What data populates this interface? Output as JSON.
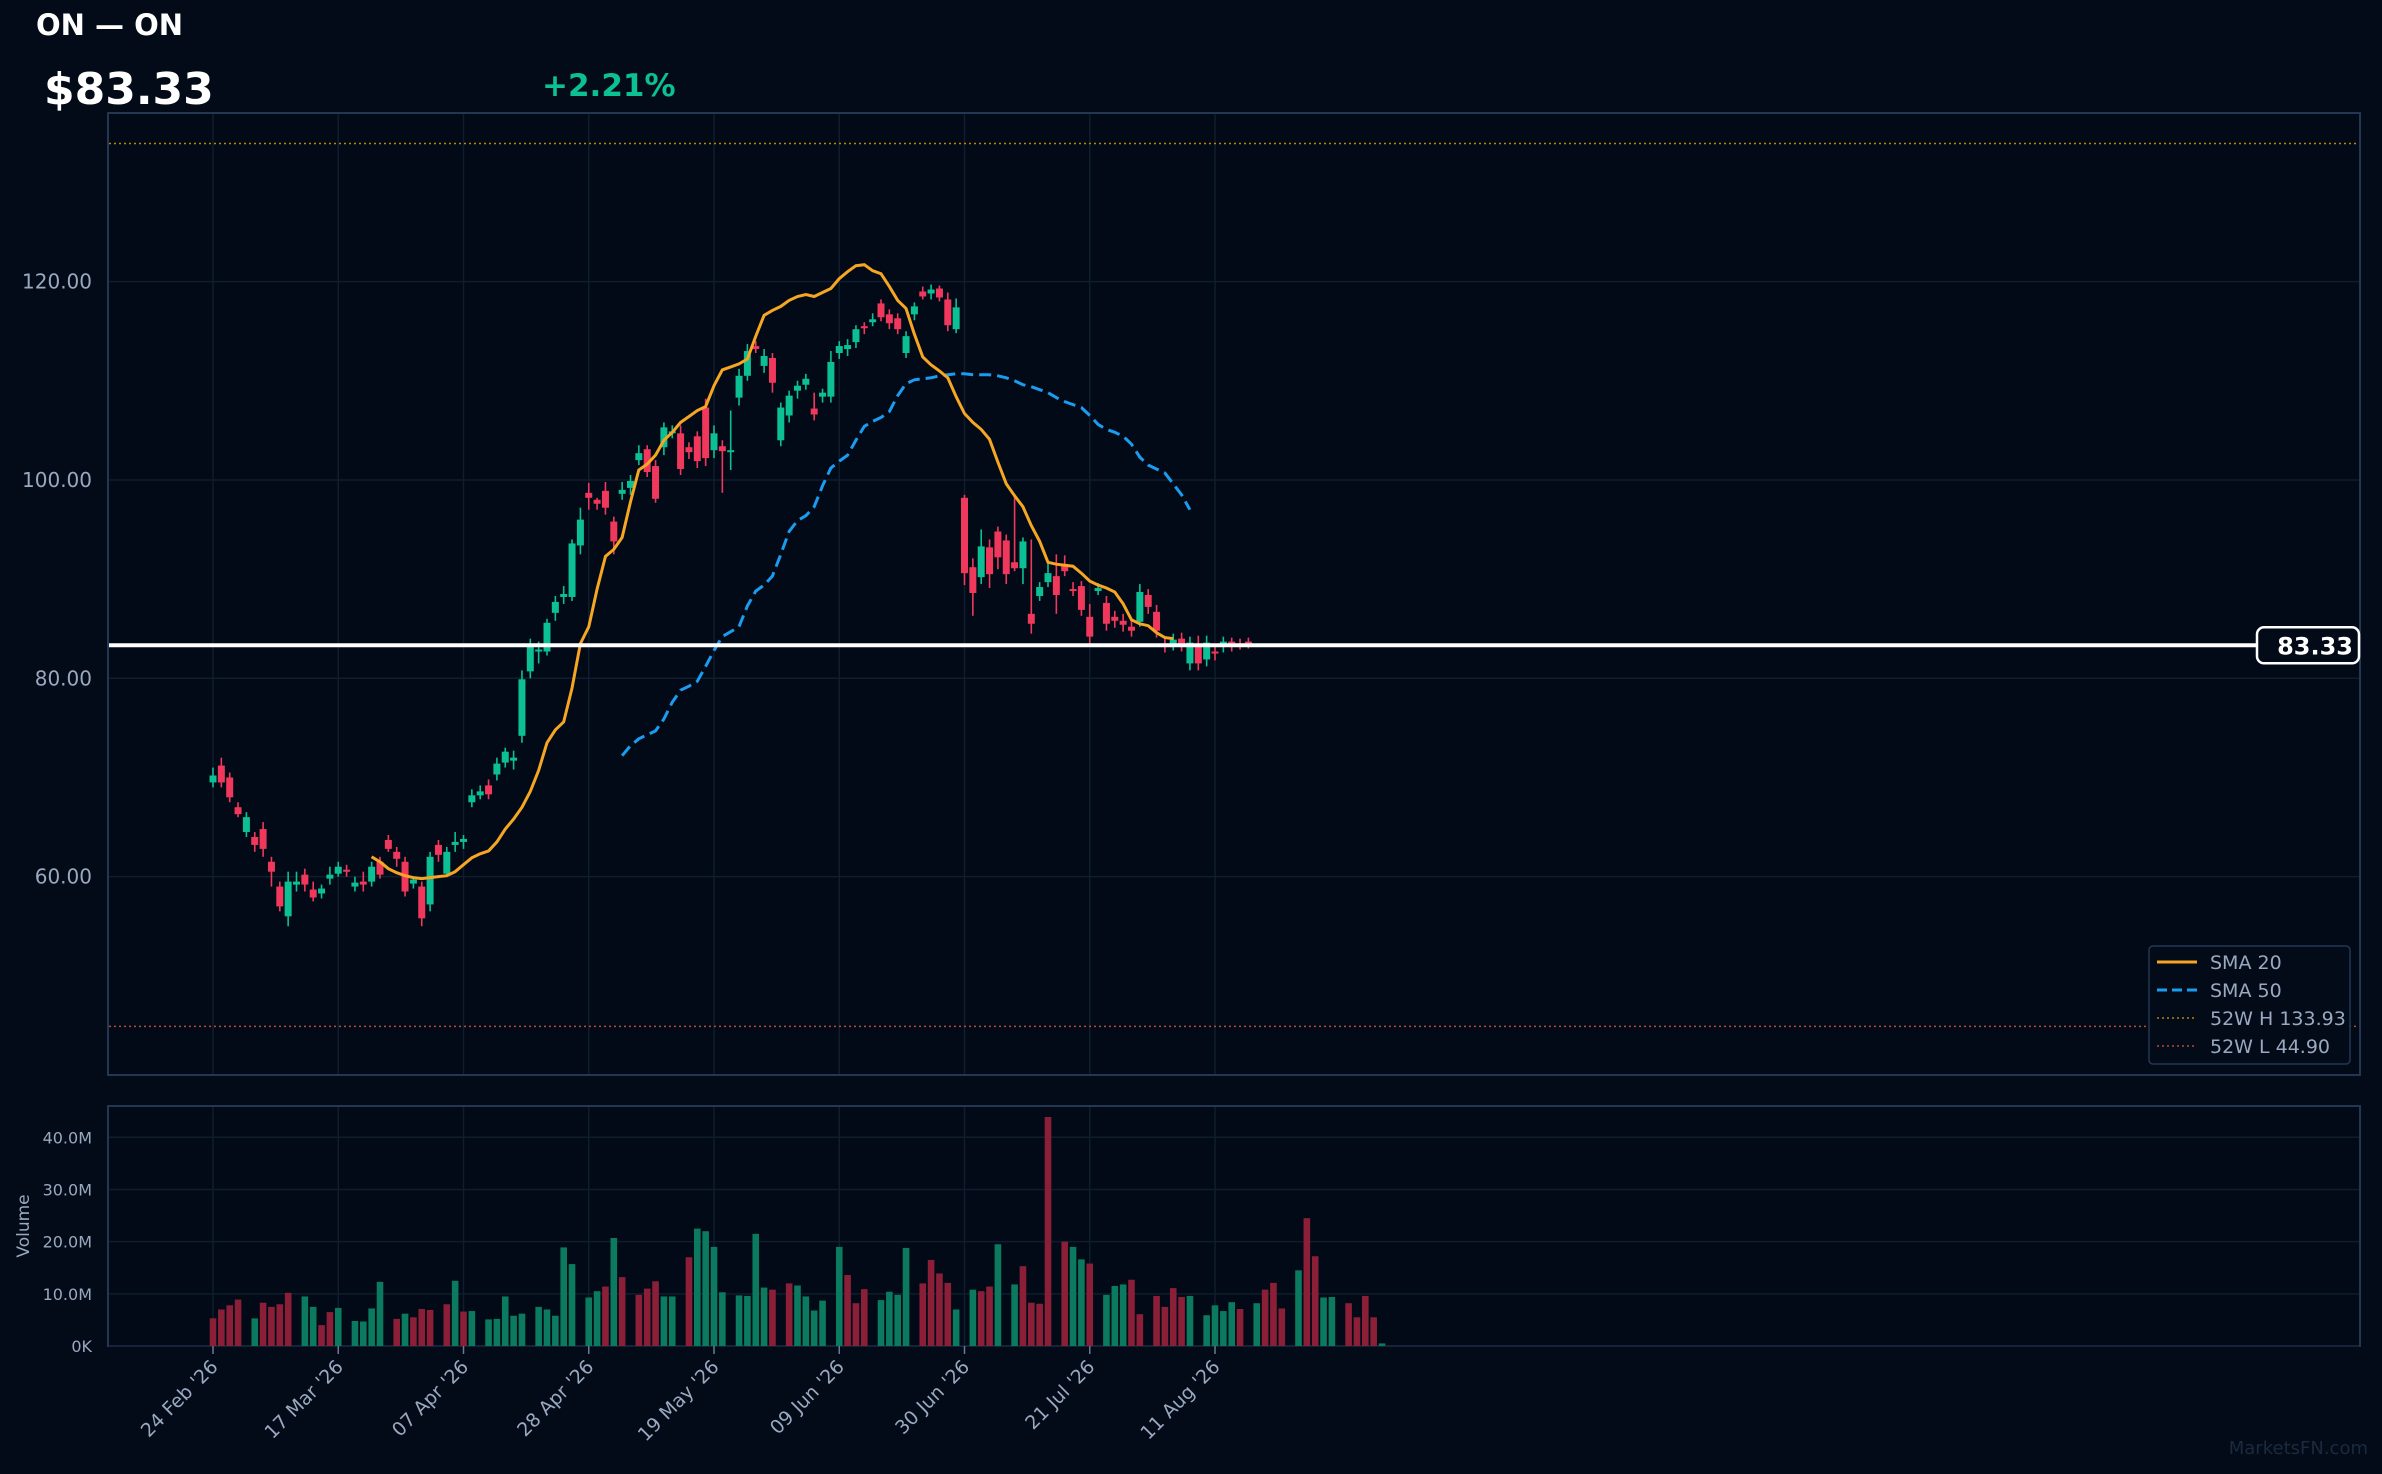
{
  "header": {
    "title": "ON — ON",
    "price": "$83.33",
    "change": "+2.21%"
  },
  "colors": {
    "up": "#0dbf94",
    "down": "#f0385c",
    "up_volume": "#0b7a5e",
    "down_volume": "#8c1f38",
    "sma20": "#f6a623",
    "sma50": "#1a9cf0",
    "high_line": "#b8860b",
    "low_line": "#b84a3a",
    "background": "#020b17",
    "axis_text": "#9aa8c0"
  },
  "watermark": "MarketsFN.com",
  "chart_data": [
    {
      "type": "candlestick",
      "price_axis": {
        "ylim": [
          40,
          137
        ],
        "ticks": [
          "60.00",
          "80.00",
          "100.00",
          "120.00"
        ],
        "grid": true
      },
      "x_ticks": [
        {
          "label": "24 Feb '26",
          "index": 0
        },
        {
          "label": "17 Mar '26",
          "index": 15
        },
        {
          "label": "07 Apr '26",
          "index": 30
        },
        {
          "label": "28 Apr '26",
          "index": 45
        },
        {
          "label": "19 May '26",
          "index": 60
        },
        {
          "label": "09 Jun '26",
          "index": 75
        },
        {
          "label": "30 Jun '26",
          "index": 90
        },
        {
          "label": "21 Jul '26",
          "index": 105
        },
        {
          "label": "11 Aug '26",
          "index": 120
        }
      ],
      "current_price_label": "83.33",
      "current_price": 83.33,
      "candles": [
        [
          69.5,
          70.2,
          71,
          69
        ],
        [
          71.2,
          69.5,
          72,
          69
        ],
        [
          70,
          68,
          70.5,
          67.5
        ],
        [
          67,
          66.3,
          67.5,
          66
        ],
        [
          64.5,
          66,
          66.5,
          64
        ],
        [
          64,
          63.2,
          64.5,
          62.5
        ],
        [
          64.8,
          62.8,
          65.5,
          62
        ],
        [
          61.5,
          60.5,
          62,
          59
        ],
        [
          59,
          57,
          59.5,
          56.5
        ],
        [
          56,
          59.5,
          60.5,
          55
        ],
        [
          59.2,
          59.5,
          60.5,
          58.5
        ],
        [
          60.2,
          59.2,
          60.8,
          58.5
        ],
        [
          58.7,
          57.9,
          59.5,
          57.5
        ],
        [
          58.3,
          58.8,
          59.2,
          57.8
        ],
        [
          59.8,
          60.2,
          61,
          59.2
        ],
        [
          60.3,
          61,
          61.5,
          60
        ],
        [
          60.7,
          60.5,
          61.2,
          60
        ],
        [
          59,
          59.4,
          60,
          58.5
        ],
        [
          59.5,
          59.2,
          60.5,
          58.5
        ],
        [
          59.5,
          61,
          61.5,
          59
        ],
        [
          61.5,
          60.2,
          62,
          59.8
        ],
        [
          63.7,
          62.8,
          64.2,
          62.5
        ],
        [
          62.5,
          61.8,
          63,
          61
        ],
        [
          61.5,
          58.5,
          62,
          58
        ],
        [
          59.3,
          59.7,
          60,
          58.8
        ],
        [
          59,
          55.8,
          59.5,
          55
        ],
        [
          57.2,
          62,
          62.5,
          56.5
        ],
        [
          63.2,
          62.2,
          63.7,
          61.5
        ],
        [
          60.3,
          62.5,
          63,
          60
        ],
        [
          63.2,
          63.5,
          64.5,
          62.5
        ],
        [
          63.5,
          63.8,
          64.2,
          62.8
        ],
        [
          67.5,
          68.2,
          68.8,
          67
        ],
        [
          68.2,
          68.6,
          69.2,
          67.8
        ],
        [
          69.2,
          68.3,
          69.8,
          67.8
        ],
        [
          70.3,
          71.4,
          72,
          69.7
        ],
        [
          71.5,
          72.6,
          73,
          71
        ],
        [
          71.7,
          72,
          72.7,
          70.8
        ],
        [
          74.2,
          79.9,
          80.8,
          73.5
        ],
        [
          80.7,
          83.5,
          84,
          80
        ],
        [
          82.7,
          82.9,
          83.7,
          81.5
        ],
        [
          82.7,
          85.6,
          86,
          82.3
        ],
        [
          86.6,
          87.7,
          88.3,
          85.8
        ],
        [
          88.2,
          88.5,
          89.3,
          87.5
        ],
        [
          88.2,
          93.6,
          94,
          87.8
        ],
        [
          93.4,
          96,
          97.2,
          92.5
        ],
        [
          98.7,
          98.2,
          99.7,
          97
        ],
        [
          98,
          97.6,
          98.2,
          97
        ],
        [
          98.9,
          97.2,
          99.8,
          96.5
        ],
        [
          95.8,
          93.8,
          96.3,
          92.5
        ],
        [
          98.6,
          99,
          99.8,
          98
        ],
        [
          99.2,
          99.9,
          100.5,
          98.5
        ],
        [
          102,
          102.7,
          103.5,
          101.5
        ],
        [
          103.1,
          100.8,
          103.5,
          100.3
        ],
        [
          101.4,
          98.1,
          102,
          97.7
        ],
        [
          103.3,
          105.3,
          105.8,
          102.5
        ],
        [
          104.8,
          104.9,
          105.5,
          104.2
        ],
        [
          104.7,
          101.1,
          105.5,
          100.5
        ],
        [
          103.3,
          102.8,
          103.8,
          102.1
        ],
        [
          104.4,
          101.9,
          104.9,
          101.2
        ],
        [
          107.3,
          102.2,
          108.2,
          101.4
        ],
        [
          103,
          104.7,
          105.5,
          102.2
        ],
        [
          103.4,
          102.9,
          104,
          98.7
        ],
        [
          103,
          103,
          107,
          101
        ],
        [
          108.3,
          110.5,
          111.2,
          107.5
        ],
        [
          110.5,
          113,
          113.7,
          110
        ],
        [
          113.5,
          113.2,
          114,
          112.8
        ],
        [
          111.5,
          112.5,
          113.2,
          110.8
        ],
        [
          112.3,
          109.8,
          112.8,
          108.8
        ],
        [
          104,
          107.3,
          107.8,
          103.4
        ],
        [
          106.5,
          108.5,
          109,
          105.8
        ],
        [
          109,
          109.5,
          110,
          108.2
        ],
        [
          109.6,
          110.2,
          110.7,
          109.1
        ],
        [
          107.2,
          106.6,
          108.8,
          106
        ],
        [
          108.4,
          108.8,
          109.2,
          107.8
        ],
        [
          108.4,
          111.9,
          113,
          107.8
        ],
        [
          112.8,
          113.5,
          114,
          112.2
        ],
        [
          113.2,
          113.6,
          114.2,
          112.5
        ],
        [
          113.9,
          115.2,
          115.6,
          113.3
        ],
        [
          115.5,
          115.3,
          115.9,
          114.7
        ],
        [
          115.9,
          116.2,
          116.8,
          115.5
        ],
        [
          117.8,
          116.4,
          118.2,
          116
        ],
        [
          116.7,
          115.8,
          117.2,
          115.2
        ],
        [
          116.3,
          115.2,
          116.8,
          114.7
        ],
        [
          112.8,
          114.5,
          115,
          112.3
        ],
        [
          116.7,
          117.5,
          117.9,
          116.1
        ],
        [
          119,
          118.5,
          119.5,
          118.2
        ],
        [
          118.8,
          119.2,
          119.7,
          118.2
        ],
        [
          119.3,
          118.4,
          119.6,
          118
        ],
        [
          118.2,
          115.6,
          118.9,
          115
        ],
        [
          115.2,
          117.4,
          118.3,
          114.8
        ],
        [
          98.2,
          90.6,
          98.5,
          89.4
        ],
        [
          91.2,
          88.6,
          92.1,
          86.3
        ],
        [
          90.2,
          93.3,
          95,
          89.5
        ],
        [
          93.2,
          90.5,
          94,
          89.1
        ],
        [
          94.8,
          92.2,
          95.3,
          91
        ],
        [
          93.9,
          90.5,
          94.5,
          89.5
        ],
        [
          91.7,
          91.1,
          98.6,
          90.8
        ],
        [
          91.1,
          93.8,
          94.2,
          89.5
        ],
        [
          86.5,
          85.5,
          94,
          84.5
        ],
        [
          88.3,
          89.2,
          89.7,
          87.8
        ],
        [
          89.7,
          90.6,
          91.7,
          89.2
        ],
        [
          90.3,
          88.4,
          92.5,
          86.5
        ],
        [
          91.3,
          90.8,
          92.4,
          90.3
        ],
        [
          89,
          88.8,
          89.7,
          88.3
        ],
        [
          89.3,
          86.9,
          89.8,
          86.3
        ],
        [
          86.2,
          84.2,
          87.5,
          83.5
        ],
        [
          88.8,
          89.1,
          89.6,
          88.4
        ],
        [
          87.6,
          85.5,
          88.3,
          84.8
        ],
        [
          86.2,
          85.8,
          86.8,
          85.1
        ],
        [
          85.8,
          85.4,
          86.5,
          84.7
        ],
        [
          85.2,
          84.8,
          86,
          84.2
        ],
        [
          85.7,
          88.7,
          89.5,
          85.2
        ],
        [
          88.4,
          87.2,
          89,
          86.5
        ],
        [
          86.7,
          84.8,
          87.4,
          84.1
        ],
        [
          83.5,
          83.2,
          84.2,
          82.6
        ],
        [
          83.4,
          83.9,
          84.5,
          82.8
        ],
        [
          84,
          83.5,
          84.6,
          82.7
        ],
        [
          81.5,
          83.6,
          84.2,
          80.8
        ],
        [
          83.5,
          81.5,
          84.3,
          80.8
        ],
        [
          81.9,
          83.6,
          84.3,
          81.2
        ],
        [
          82.7,
          82.5,
          83.5,
          81.8
        ],
        [
          83.6,
          83.7,
          84.2,
          82.6
        ],
        [
          83.7,
          83.3,
          84.1,
          82.7
        ],
        [
          83.5,
          83.3,
          84,
          82.9
        ],
        [
          83.7,
          83.3,
          84.1,
          83
        ]
      ],
      "sma20": [
        null,
        null,
        null,
        null,
        null,
        null,
        null,
        null,
        null,
        null,
        null,
        null,
        null,
        null,
        null,
        null,
        null,
        null,
        null,
        62,
        61.5,
        60.8,
        60.4,
        60.1,
        59.9,
        59.8,
        59.9,
        60,
        60.1,
        60.5,
        61.2,
        61.9,
        62.3,
        62.6,
        63.5,
        64.8,
        65.8,
        67,
        68.6,
        70.7,
        73.5,
        74.8,
        75.6,
        79,
        83.5,
        85.2,
        89,
        92.3,
        93,
        94.2,
        97.8,
        101,
        101.6,
        102.5,
        104,
        104.8,
        105.8,
        106.4,
        107,
        107.4,
        109.5,
        111.1,
        111.4,
        111.7,
        112.2,
        114.5,
        116.6,
        117.1,
        117.5,
        118.1,
        118.5,
        118.7,
        118.5,
        118.9,
        119.3,
        120.3,
        121,
        121.6,
        121.7,
        121.1,
        120.8,
        119.5,
        118.1,
        117.3,
        114.7,
        112.4,
        111.6,
        111,
        110.3,
        108.4,
        106.7,
        105.8,
        105.1,
        104.1,
        101.8,
        99.6,
        98.4,
        97.3,
        95.4,
        93.8,
        91.7,
        91.5,
        91.4,
        91.3,
        90.6,
        89.8,
        89.4,
        89.1,
        88.7,
        87.5,
        85.9,
        85.5,
        85.3,
        84.6,
        84.1,
        84.0
      ],
      "sma50": [
        null,
        null,
        null,
        null,
        null,
        null,
        null,
        null,
        null,
        null,
        null,
        null,
        null,
        null,
        null,
        null,
        null,
        null,
        null,
        null,
        null,
        null,
        null,
        null,
        null,
        null,
        null,
        null,
        null,
        null,
        null,
        null,
        null,
        null,
        null,
        null,
        null,
        null,
        null,
        null,
        null,
        null,
        null,
        null,
        null,
        null,
        null,
        null,
        null,
        72.2,
        73.2,
        73.9,
        74.3,
        74.7,
        75.9,
        77.6,
        78.8,
        79.2,
        79.7,
        81.2,
        82.8,
        84.2,
        84.7,
        85.2,
        87.3,
        88.8,
        89.4,
        90.3,
        92.5,
        94.8,
        95.9,
        96.4,
        97.3,
        99.4,
        101.2,
        101.9,
        102.5,
        104,
        105.4,
        105.9,
        106.3,
        106.9,
        108.5,
        109.7,
        110.1,
        110.2,
        110.3,
        110.5,
        110.6,
        110.7,
        110.7,
        110.6,
        110.6,
        110.6,
        110.5,
        110.3,
        110,
        109.6,
        109.4,
        109.1,
        108.8,
        108.3,
        107.9,
        107.6,
        107.3,
        106.5,
        105.6,
        105.1,
        104.8,
        104.4,
        103.6,
        102.3,
        101.5,
        101.1,
        100.7,
        99.6,
        98.5,
        97.0
      ],
      "volume_series": [
        5.3,
        7,
        7.8,
        8.9,
        null,
        5.3,
        8.3,
        7.5,
        8,
        10.2,
        null,
        9.5,
        7.5,
        4,
        6.5,
        7.3,
        null,
        4.8,
        4.7,
        7.2,
        12.3,
        null,
        5.2,
        6.2,
        5.5,
        7.1,
        6.9,
        null,
        8,
        12.5,
        6.6,
        6.7,
        null,
        5.1,
        5.2,
        9.5,
        5.8,
        6.2,
        null,
        7.5,
        7,
        5.8,
        18.9,
        15.7,
        null,
        9.3,
        10.5,
        11.4,
        20.7,
        13.2,
        null,
        9.8,
        11,
        12.4,
        9.5,
        9.5,
        null,
        17,
        22.5,
        22,
        19,
        10.3,
        null,
        9.7,
        9.6,
        21.5,
        11.2,
        10.8,
        null,
        12,
        11.6,
        9.5,
        6.8,
        8.7,
        null,
        19,
        13.6,
        8.2,
        10.9,
        null,
        8.8,
        10.4,
        9.8,
        18.8,
        null,
        12,
        16.5,
        13.9,
        12.1,
        7,
        null,
        10.8,
        10.5,
        11.4,
        19.5,
        null,
        11.8,
        15.3,
        8.3,
        8.1,
        43.9,
        null,
        20,
        19,
        16.6,
        15.8,
        null,
        9.8,
        11.5,
        11.8,
        12.7,
        6.1,
        null,
        9.6,
        7.5,
        11.1,
        9.4,
        9.6,
        null,
        5.9,
        7.8,
        6.7,
        8.4,
        7.1,
        null,
        8.2,
        10.8,
        12.1,
        7.2,
        null,
        14.5,
        24.5,
        17.2,
        9.3,
        9.4,
        null,
        8.2,
        5.5,
        9.6,
        5.5,
        0.5
      ],
      "volume_up": [
        0,
        0,
        0,
        0,
        null,
        1,
        0,
        0,
        0,
        0,
        null,
        1,
        1,
        0,
        0,
        1,
        null,
        1,
        1,
        1,
        1,
        null,
        0,
        1,
        0,
        0,
        0,
        null,
        0,
        1,
        0,
        1,
        null,
        1,
        1,
        1,
        1,
        1,
        null,
        1,
        1,
        1,
        1,
        1,
        null,
        1,
        1,
        0,
        1,
        0,
        null,
        0,
        0,
        0,
        1,
        1,
        null,
        0,
        1,
        1,
        1,
        1,
        null,
        1,
        1,
        1,
        1,
        0,
        null,
        0,
        1,
        1,
        1,
        1,
        null,
        1,
        0,
        0,
        0,
        null,
        1,
        1,
        1,
        1,
        null,
        0,
        0,
        0,
        0,
        1,
        null,
        1,
        0,
        0,
        1,
        null,
        1,
        0,
        0,
        0,
        0,
        null,
        0,
        1,
        1,
        0,
        null,
        1,
        1,
        1,
        0,
        0,
        null,
        0,
        0,
        0,
        0,
        1,
        null,
        1,
        1,
        1,
        1,
        0,
        null,
        1,
        0,
        0,
        0,
        null,
        1,
        0,
        0,
        1,
        1,
        null,
        0,
        0,
        0,
        0,
        1
      ],
      "volume_axis": {
        "label": "Volume",
        "ticks": [
          "0K",
          "10.0M",
          "20.0M",
          "30.0M",
          "40.0M"
        ],
        "ylim": [
          0,
          46
        ]
      },
      "reference_lines": {
        "high_52w": 133.93,
        "low_52w": 44.9
      },
      "legend": {
        "placement": "bottom-right",
        "items": [
          "SMA 20",
          "SMA 50",
          "52W H 133.93",
          "52W L 44.90"
        ]
      }
    }
  ]
}
